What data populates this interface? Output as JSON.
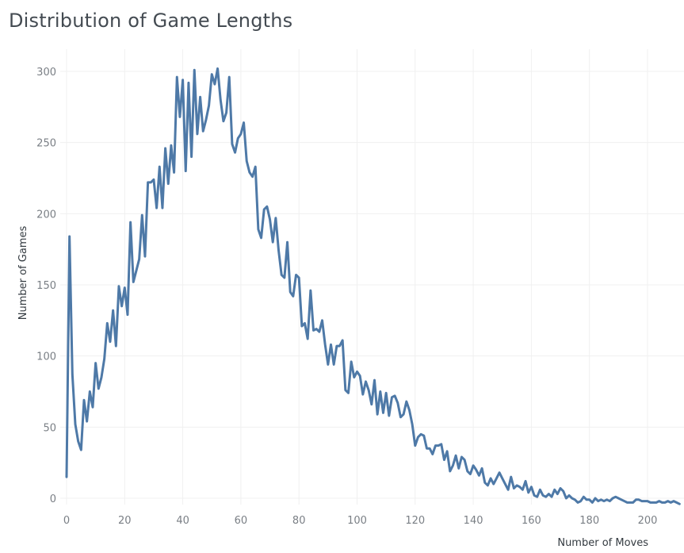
{
  "chart_data": {
    "type": "line",
    "title": "Distribution of Game Lengths",
    "xlabel": "Number of Moves",
    "ylabel": "Number of Games",
    "xlim": [
      -1,
      212
    ],
    "ylim": [
      -5,
      315
    ],
    "x_ticks": [
      0,
      20,
      40,
      60,
      80,
      100,
      120,
      140,
      160,
      180,
      200
    ],
    "y_ticks": [
      0,
      50,
      100,
      150,
      200,
      250,
      300
    ],
    "grid": true,
    "legend": "none",
    "series": [
      {
        "color": "#4e79a7",
        "points": [
          [
            0,
            15
          ],
          [
            1,
            184
          ],
          [
            2,
            87
          ],
          [
            3,
            52
          ],
          [
            4,
            40
          ],
          [
            5,
            34
          ],
          [
            6,
            69
          ],
          [
            7,
            54
          ],
          [
            8,
            75
          ],
          [
            9,
            64
          ],
          [
            10,
            95
          ],
          [
            11,
            77
          ],
          [
            12,
            85
          ],
          [
            13,
            98
          ],
          [
            14,
            123
          ],
          [
            15,
            110
          ],
          [
            16,
            132
          ],
          [
            17,
            107
          ],
          [
            18,
            149
          ],
          [
            19,
            135
          ],
          [
            20,
            148
          ],
          [
            21,
            129
          ],
          [
            22,
            194
          ],
          [
            23,
            152
          ],
          [
            24,
            160
          ],
          [
            25,
            168
          ],
          [
            26,
            199
          ],
          [
            27,
            170
          ],
          [
            28,
            222
          ],
          [
            29,
            222
          ],
          [
            30,
            224
          ],
          [
            31,
            204
          ],
          [
            32,
            233
          ],
          [
            33,
            204
          ],
          [
            34,
            246
          ],
          [
            35,
            221
          ],
          [
            36,
            248
          ],
          [
            37,
            229
          ],
          [
            38,
            296
          ],
          [
            39,
            268
          ],
          [
            40,
            294
          ],
          [
            41,
            230
          ],
          [
            42,
            292
          ],
          [
            43,
            240
          ],
          [
            44,
            301
          ],
          [
            45,
            256
          ],
          [
            46,
            282
          ],
          [
            47,
            258
          ],
          [
            48,
            266
          ],
          [
            49,
            276
          ],
          [
            50,
            298
          ],
          [
            51,
            291
          ],
          [
            52,
            302
          ],
          [
            53,
            280
          ],
          [
            54,
            265
          ],
          [
            55,
            271
          ],
          [
            56,
            296
          ],
          [
            57,
            249
          ],
          [
            58,
            243
          ],
          [
            59,
            253
          ],
          [
            60,
            256
          ],
          [
            61,
            264
          ],
          [
            62,
            237
          ],
          [
            63,
            229
          ],
          [
            64,
            226
          ],
          [
            65,
            233
          ],
          [
            66,
            189
          ],
          [
            67,
            183
          ],
          [
            68,
            203
          ],
          [
            69,
            205
          ],
          [
            70,
            196
          ],
          [
            71,
            180
          ],
          [
            72,
            197
          ],
          [
            73,
            174
          ],
          [
            74,
            157
          ],
          [
            75,
            155
          ],
          [
            76,
            180
          ],
          [
            77,
            145
          ],
          [
            78,
            142
          ],
          [
            79,
            157
          ],
          [
            80,
            155
          ],
          [
            81,
            121
          ],
          [
            82,
            123
          ],
          [
            83,
            112
          ],
          [
            84,
            146
          ],
          [
            85,
            118
          ],
          [
            86,
            119
          ],
          [
            87,
            117
          ],
          [
            88,
            125
          ],
          [
            89,
            108
          ],
          [
            90,
            94
          ],
          [
            91,
            108
          ],
          [
            92,
            94
          ],
          [
            93,
            107
          ],
          [
            94,
            107
          ],
          [
            95,
            111
          ],
          [
            96,
            76
          ],
          [
            97,
            74
          ],
          [
            98,
            96
          ],
          [
            99,
            85
          ],
          [
            100,
            89
          ],
          [
            101,
            86
          ],
          [
            102,
            73
          ],
          [
            103,
            82
          ],
          [
            104,
            76
          ],
          [
            105,
            66
          ],
          [
            106,
            83
          ],
          [
            107,
            59
          ],
          [
            108,
            75
          ],
          [
            109,
            60
          ],
          [
            110,
            74
          ],
          [
            111,
            58
          ],
          [
            112,
            71
          ],
          [
            113,
            72
          ],
          [
            114,
            67
          ],
          [
            115,
            57
          ],
          [
            116,
            59
          ],
          [
            117,
            68
          ],
          [
            118,
            62
          ],
          [
            119,
            52
          ],
          [
            120,
            37
          ],
          [
            121,
            43
          ],
          [
            122,
            45
          ],
          [
            123,
            44
          ],
          [
            124,
            35
          ],
          [
            125,
            35
          ],
          [
            126,
            31
          ],
          [
            127,
            37
          ],
          [
            128,
            37
          ],
          [
            129,
            38
          ],
          [
            130,
            27
          ],
          [
            131,
            33
          ],
          [
            132,
            19
          ],
          [
            133,
            23
          ],
          [
            134,
            30
          ],
          [
            135,
            21
          ],
          [
            136,
            29
          ],
          [
            137,
            27
          ],
          [
            138,
            19
          ],
          [
            139,
            17
          ],
          [
            140,
            23
          ],
          [
            141,
            20
          ],
          [
            142,
            16
          ],
          [
            143,
            21
          ],
          [
            144,
            11
          ],
          [
            145,
            9
          ],
          [
            146,
            14
          ],
          [
            147,
            10
          ],
          [
            148,
            14
          ],
          [
            149,
            18
          ],
          [
            150,
            14
          ],
          [
            151,
            10
          ],
          [
            152,
            6
          ],
          [
            153,
            15
          ],
          [
            154,
            7
          ],
          [
            155,
            9
          ],
          [
            156,
            8
          ],
          [
            157,
            6
          ],
          [
            158,
            12
          ],
          [
            159,
            4
          ],
          [
            160,
            8
          ],
          [
            161,
            2
          ],
          [
            162,
            1
          ],
          [
            163,
            6
          ],
          [
            164,
            2
          ],
          [
            165,
            1
          ],
          [
            166,
            3
          ],
          [
            167,
            1
          ],
          [
            168,
            6
          ],
          [
            169,
            3
          ],
          [
            170,
            7
          ],
          [
            171,
            5
          ],
          [
            172,
            0
          ],
          [
            173,
            2
          ],
          [
            174,
            0
          ],
          [
            175,
            -1
          ],
          [
            176,
            -3
          ],
          [
            177,
            -2
          ],
          [
            178,
            1
          ],
          [
            179,
            -1
          ],
          [
            180,
            -1
          ],
          [
            181,
            -3
          ],
          [
            182,
            0
          ],
          [
            183,
            -2
          ],
          [
            184,
            -1
          ],
          [
            185,
            -2
          ],
          [
            186,
            -1
          ],
          [
            187,
            -2
          ],
          [
            188,
            0
          ],
          [
            189,
            1
          ],
          [
            190,
            0
          ],
          [
            191,
            -1
          ],
          [
            192,
            -2
          ],
          [
            193,
            -3
          ],
          [
            194,
            -3
          ],
          [
            195,
            -3
          ],
          [
            196,
            -1
          ],
          [
            197,
            -1
          ],
          [
            198,
            -2
          ],
          [
            199,
            -2
          ],
          [
            200,
            -2
          ],
          [
            201,
            -3
          ],
          [
            202,
            -3
          ],
          [
            203,
            -3
          ],
          [
            204,
            -2
          ],
          [
            205,
            -3
          ],
          [
            206,
            -3
          ],
          [
            207,
            -2
          ],
          [
            208,
            -3
          ],
          [
            209,
            -2
          ],
          [
            210,
            -3
          ],
          [
            211,
            -4
          ]
        ]
      }
    ]
  }
}
